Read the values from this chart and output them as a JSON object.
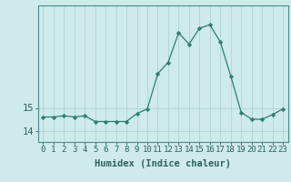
{
  "x": [
    0,
    1,
    2,
    3,
    4,
    5,
    6,
    7,
    8,
    9,
    10,
    11,
    12,
    13,
    14,
    15,
    16,
    17,
    18,
    19,
    20,
    21,
    22,
    23
  ],
  "y": [
    14.6,
    14.6,
    14.65,
    14.6,
    14.65,
    14.4,
    14.4,
    14.4,
    14.4,
    14.75,
    14.95,
    16.5,
    17.0,
    18.3,
    17.8,
    18.5,
    18.65,
    17.9,
    16.4,
    14.8,
    14.5,
    14.5,
    14.7,
    14.95
  ],
  "ylim": [
    13.5,
    19.5
  ],
  "yticks": [
    14,
    15
  ],
  "ytick_labels": [
    "14",
    "15"
  ],
  "xlabel": "Humidex (Indice chaleur)",
  "line_color": "#2e7d6e",
  "marker_color": "#2e7d6e",
  "bg_color": "#ceeaea",
  "grid_color": "#aed4d4",
  "tick_color": "#2e6060",
  "label_color": "#2e6060",
  "xlabel_fontsize": 7.5,
  "tick_fontsize": 6.5,
  "spine_color": "#4a8a8a"
}
